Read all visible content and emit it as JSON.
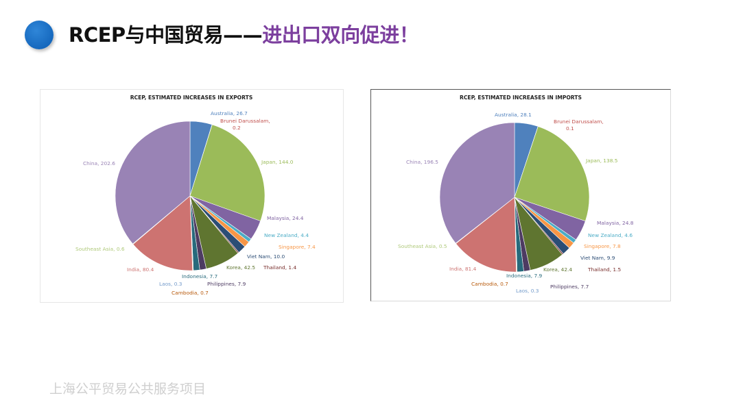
{
  "header": {
    "title_main": "RCEP与中国贸易——",
    "title_accent": "进出口双向促进！"
  },
  "colors": {
    "title_accent": "#7c3f9e",
    "bullet": "#1565c0"
  },
  "footer": {
    "text": "上海公平贸易公共服务项目"
  },
  "chart_data": [
    {
      "type": "pie",
      "title": "RCEP, ESTIMATED INCREASES IN EXPORTS",
      "slices": [
        {
          "label": "Australia",
          "value": 26.7,
          "text": "Australia, 26.7",
          "color": "#4f81bd",
          "text_color": "#4f81bd"
        },
        {
          "label": "Brunei Darussalam",
          "value": 0.2,
          "text": "Brunei Darussalam, 0.2",
          "color": "#c0504d",
          "text_color": "#c0504d"
        },
        {
          "label": "Japan",
          "value": 144.0,
          "text": "Japan, 144.0",
          "color": "#9bbb59",
          "text_color": "#9bbb59"
        },
        {
          "label": "Malaysia",
          "value": 24.4,
          "text": "Malaysia, 24.4",
          "color": "#8064a2",
          "text_color": "#8064a2"
        },
        {
          "label": "New Zealand",
          "value": 4.4,
          "text": "New Zealand, 4.4",
          "color": "#4bacc6",
          "text_color": "#4bacc6"
        },
        {
          "label": "Singapore",
          "value": 7.4,
          "text": "Singapore, 7.4",
          "color": "#f79646",
          "text_color": "#f79646"
        },
        {
          "label": "Viet Nam",
          "value": 10.0,
          "text": "Viet Nam, 10.0",
          "color": "#2c4d75",
          "text_color": "#2c4d75"
        },
        {
          "label": "Thailand",
          "value": 1.4,
          "text": "Thailand, 1.4",
          "color": "#772c2a",
          "text_color": "#772c2a"
        },
        {
          "label": "Korea",
          "value": 42.5,
          "text": "Korea, 42.5",
          "color": "#5f7530",
          "text_color": "#5f7530"
        },
        {
          "label": "Philippines",
          "value": 7.9,
          "text": "Philippines, 7.9",
          "color": "#4d3b62",
          "text_color": "#4d3b62"
        },
        {
          "label": "Indonesia",
          "value": 7.7,
          "text": "Indonesia, 7.7",
          "color": "#276a7c",
          "text_color": "#276a7c"
        },
        {
          "label": "Cambodia",
          "value": 0.7,
          "text": "Cambodia, 0.7",
          "color": "#b65708",
          "text_color": "#b65708"
        },
        {
          "label": "Laos",
          "value": 0.3,
          "text": "Laos, 0.3",
          "color": "#729aca",
          "text_color": "#729aca"
        },
        {
          "label": "India",
          "value": 80.4,
          "text": "India, 80.4",
          "color": "#cd7371",
          "text_color": "#cd7371"
        },
        {
          "label": "Southeast Asia",
          "value": 0.6,
          "text": "Southeast Asia, 0.6",
          "color": "#afc97a",
          "text_color": "#afc97a"
        },
        {
          "label": "China",
          "value": 202.6,
          "text": "China, 202.6",
          "color": "#9983b5",
          "text_color": "#9983b5"
        }
      ]
    },
    {
      "type": "pie",
      "title": "RCEP, ESTIMATED INCREASES IN IMPORTS",
      "slices": [
        {
          "label": "Australia",
          "value": 28.1,
          "text": "Australia, 28.1",
          "color": "#4f81bd",
          "text_color": "#4f81bd"
        },
        {
          "label": "Brunei Darussalam",
          "value": 0.1,
          "text": "Brunei Darussalam, 0.1",
          "color": "#c0504d",
          "text_color": "#c0504d"
        },
        {
          "label": "Japan",
          "value": 138.5,
          "text": "Japan, 138.5",
          "color": "#9bbb59",
          "text_color": "#9bbb59"
        },
        {
          "label": "Malaysia",
          "value": 24.8,
          "text": "Malaysia, 24.8",
          "color": "#8064a2",
          "text_color": "#8064a2"
        },
        {
          "label": "New Zealand",
          "value": 4.6,
          "text": "New Zealand, 4.6",
          "color": "#4bacc6",
          "text_color": "#4bacc6"
        },
        {
          "label": "Singapore",
          "value": 7.8,
          "text": "Singapore, 7.8",
          "color": "#f79646",
          "text_color": "#f79646"
        },
        {
          "label": "Viet Nam",
          "value": 9.9,
          "text": "Viet Nam, 9.9",
          "color": "#2c4d75",
          "text_color": "#2c4d75"
        },
        {
          "label": "Thailand",
          "value": 1.5,
          "text": "Thailand, 1.5",
          "color": "#772c2a",
          "text_color": "#772c2a"
        },
        {
          "label": "Korea",
          "value": 42.4,
          "text": "Korea, 42.4",
          "color": "#5f7530",
          "text_color": "#5f7530"
        },
        {
          "label": "Philippines",
          "value": 7.7,
          "text": "Philippines, 7.7",
          "color": "#4d3b62",
          "text_color": "#4d3b62"
        },
        {
          "label": "Indonesia",
          "value": 7.9,
          "text": "Indonesia, 7.9",
          "color": "#276a7c",
          "text_color": "#276a7c"
        },
        {
          "label": "Cambodia",
          "value": 0.7,
          "text": "Cambodia, 0.7",
          "color": "#b65708",
          "text_color": "#b65708"
        },
        {
          "label": "Laos",
          "value": 0.3,
          "text": "Laos, 0.3",
          "color": "#729aca",
          "text_color": "#729aca"
        },
        {
          "label": "India",
          "value": 81.4,
          "text": "India, 81.4",
          "color": "#cd7371",
          "text_color": "#cd7371"
        },
        {
          "label": "Southeast Asia",
          "value": 0.5,
          "text": "Southeast Asia, 0.5",
          "color": "#afc97a",
          "text_color": "#afc97a"
        },
        {
          "label": "China",
          "value": 196.5,
          "text": "China, 196.5",
          "color": "#9983b5",
          "text_color": "#9983b5"
        }
      ]
    }
  ]
}
